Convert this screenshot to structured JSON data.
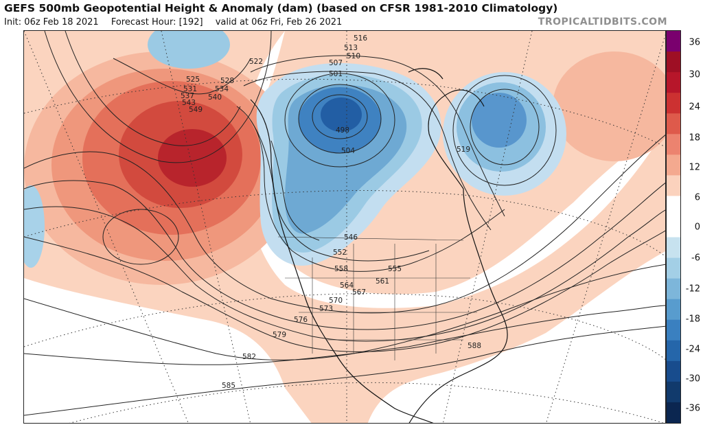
{
  "header": {
    "title": "GEFS 500mb Geopotential Height & Anomaly (dam) (based on CFSR 1981-2010 Climatology)",
    "init": "Init: 06z Feb 18 2021",
    "forecast_hour": "Forecast Hour: [192]",
    "valid": "valid at 06z Fri, Feb 26 2021",
    "brand": "TROPICALTIDBITS.COM"
  },
  "colorbar": {
    "ticks": [
      "36",
      "30",
      "24",
      "18",
      "12",
      "6",
      "0",
      "-6",
      "-12",
      "-18",
      "-24",
      "-30",
      "-36"
    ],
    "colors": [
      "#7a006e",
      "#9e0f24",
      "#b7162a",
      "#cc3131",
      "#de5a4b",
      "#ec836f",
      "#f4a98f",
      "#fbd2bd",
      "#ffffff",
      "#ffffff",
      "#c7e2ef",
      "#a3cfe6",
      "#7db6da",
      "#589cce",
      "#3a80c0",
      "#2566aa",
      "#184c8d",
      "#113a6c",
      "#0b2650"
    ]
  },
  "contour_labels": [
    {
      "text": "516"
    },
    {
      "text": "513"
    },
    {
      "text": "510"
    },
    {
      "text": "507"
    },
    {
      "text": "501"
    },
    {
      "text": "498"
    },
    {
      "text": "504"
    },
    {
      "text": "522"
    },
    {
      "text": "525"
    },
    {
      "text": "528"
    },
    {
      "text": "531"
    },
    {
      "text": "534"
    },
    {
      "text": "537"
    },
    {
      "text": "540"
    },
    {
      "text": "543"
    },
    {
      "text": "546"
    },
    {
      "text": "549"
    },
    {
      "text": "552"
    },
    {
      "text": "555"
    },
    {
      "text": "558"
    },
    {
      "text": "561"
    },
    {
      "text": "564"
    },
    {
      "text": "567"
    },
    {
      "text": "570"
    },
    {
      "text": "573"
    },
    {
      "text": "576"
    },
    {
      "text": "579"
    },
    {
      "text": "582"
    },
    {
      "text": "585"
    },
    {
      "text": "588"
    },
    {
      "text": "519"
    }
  ]
}
